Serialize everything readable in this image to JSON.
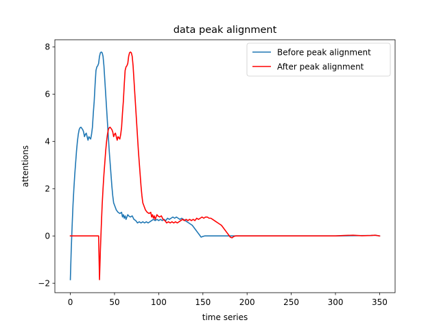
{
  "chart_data": {
    "type": "line",
    "title": "data peak alignment",
    "xlabel": "time series",
    "ylabel": "attentions",
    "xlim": [
      -17.5,
      367.5
    ],
    "ylim": [
      -2.4,
      8.3
    ],
    "xticks": [
      0,
      50,
      100,
      150,
      200,
      250,
      300,
      350
    ],
    "yticks": [
      -2,
      0,
      2,
      4,
      6,
      8
    ],
    "grid": false,
    "legend_position": "upper-right",
    "series": [
      {
        "name": "Before peak alignment",
        "color": "#1f77b4",
        "points": [
          [
            0,
            -1.85
          ],
          [
            1,
            -0.6
          ],
          [
            2,
            0.4
          ],
          [
            3,
            1.3
          ],
          [
            4,
            2.0
          ],
          [
            5,
            2.6
          ],
          [
            6,
            3.1
          ],
          [
            7,
            3.6
          ],
          [
            8,
            4.0
          ],
          [
            9,
            4.3
          ],
          [
            10,
            4.5
          ],
          [
            11,
            4.58
          ],
          [
            12,
            4.6
          ],
          [
            13,
            4.55
          ],
          [
            14,
            4.5
          ],
          [
            15,
            4.4
          ],
          [
            16,
            4.2
          ],
          [
            17,
            4.3
          ],
          [
            18,
            4.35
          ],
          [
            19,
            4.2
          ],
          [
            20,
            4.05
          ],
          [
            21,
            4.2
          ],
          [
            22,
            4.15
          ],
          [
            23,
            4.1
          ],
          [
            24,
            4.3
          ],
          [
            25,
            4.6
          ],
          [
            26,
            5.2
          ],
          [
            27,
            5.7
          ],
          [
            28,
            6.4
          ],
          [
            29,
            7.0
          ],
          [
            30,
            7.15
          ],
          [
            31,
            7.2
          ],
          [
            32,
            7.3
          ],
          [
            33,
            7.6
          ],
          [
            34,
            7.75
          ],
          [
            35,
            7.78
          ],
          [
            36,
            7.75
          ],
          [
            37,
            7.6
          ],
          [
            38,
            7.2
          ],
          [
            39,
            6.6
          ],
          [
            40,
            6.0
          ],
          [
            41,
            5.4
          ],
          [
            42,
            4.8
          ],
          [
            43,
            4.2
          ],
          [
            44,
            3.6
          ],
          [
            45,
            3.1
          ],
          [
            46,
            2.6
          ],
          [
            47,
            2.1
          ],
          [
            48,
            1.7
          ],
          [
            49,
            1.4
          ],
          [
            50,
            1.3
          ],
          [
            52,
            1.1
          ],
          [
            54,
            1.0
          ],
          [
            56,
            0.95
          ],
          [
            58,
            1.0
          ],
          [
            59,
            0.8
          ],
          [
            60,
            0.9
          ],
          [
            61,
            0.75
          ],
          [
            62,
            0.85
          ],
          [
            63,
            0.7
          ],
          [
            64,
            0.8
          ],
          [
            65,
            0.9
          ],
          [
            66,
            0.85
          ],
          [
            68,
            0.8
          ],
          [
            70,
            0.85
          ],
          [
            72,
            0.7
          ],
          [
            74,
            0.65
          ],
          [
            76,
            0.55
          ],
          [
            78,
            0.6
          ],
          [
            80,
            0.55
          ],
          [
            82,
            0.6
          ],
          [
            84,
            0.55
          ],
          [
            86,
            0.6
          ],
          [
            88,
            0.55
          ],
          [
            90,
            0.6
          ],
          [
            92,
            0.65
          ],
          [
            94,
            0.7
          ],
          [
            96,
            0.65
          ],
          [
            98,
            0.7
          ],
          [
            100,
            0.65
          ],
          [
            102,
            0.7
          ],
          [
            104,
            0.65
          ],
          [
            106,
            0.7
          ],
          [
            108,
            0.65
          ],
          [
            110,
            0.75
          ],
          [
            112,
            0.7
          ],
          [
            114,
            0.75
          ],
          [
            116,
            0.8
          ],
          [
            118,
            0.75
          ],
          [
            120,
            0.8
          ],
          [
            122,
            0.75
          ],
          [
            124,
            0.7
          ],
          [
            126,
            0.75
          ],
          [
            128,
            0.7
          ],
          [
            130,
            0.65
          ],
          [
            132,
            0.6
          ],
          [
            134,
            0.55
          ],
          [
            136,
            0.5
          ],
          [
            138,
            0.45
          ],
          [
            140,
            0.35
          ],
          [
            142,
            0.25
          ],
          [
            144,
            0.15
          ],
          [
            146,
            0.05
          ],
          [
            148,
            -0.05
          ],
          [
            150,
            -0.02
          ],
          [
            152,
            0.0
          ],
          [
            155,
            0.0
          ],
          [
            170,
            0.0
          ],
          [
            185,
            0.0
          ],
          [
            200,
            0.0
          ],
          [
            250,
            0.0
          ],
          [
            300,
            0.0
          ],
          [
            340,
            0.02
          ],
          [
            345,
            0.03
          ],
          [
            350,
            0.0
          ]
        ]
      },
      {
        "name": "After peak alignment",
        "color": "#ff0000",
        "points": [
          [
            0,
            0.0
          ],
          [
            10,
            0.0
          ],
          [
            20,
            0.0
          ],
          [
            31,
            0.0
          ],
          [
            32,
            0.0
          ],
          [
            33,
            -1.85
          ],
          [
            34,
            -0.6
          ],
          [
            35,
            0.4
          ],
          [
            36,
            1.3
          ],
          [
            37,
            2.0
          ],
          [
            38,
            2.6
          ],
          [
            39,
            3.1
          ],
          [
            40,
            3.6
          ],
          [
            41,
            4.0
          ],
          [
            42,
            4.3
          ],
          [
            43,
            4.5
          ],
          [
            44,
            4.58
          ],
          [
            45,
            4.6
          ],
          [
            46,
            4.55
          ],
          [
            47,
            4.5
          ],
          [
            48,
            4.4
          ],
          [
            49,
            4.2
          ],
          [
            50,
            4.3
          ],
          [
            51,
            4.35
          ],
          [
            52,
            4.2
          ],
          [
            53,
            4.05
          ],
          [
            54,
            4.2
          ],
          [
            55,
            4.15
          ],
          [
            56,
            4.1
          ],
          [
            57,
            4.3
          ],
          [
            58,
            4.6
          ],
          [
            59,
            5.2
          ],
          [
            60,
            5.7
          ],
          [
            61,
            6.4
          ],
          [
            62,
            7.0
          ],
          [
            63,
            7.15
          ],
          [
            64,
            7.2
          ],
          [
            65,
            7.3
          ],
          [
            66,
            7.6
          ],
          [
            67,
            7.75
          ],
          [
            68,
            7.78
          ],
          [
            69,
            7.75
          ],
          [
            70,
            7.6
          ],
          [
            71,
            7.2
          ],
          [
            72,
            6.6
          ],
          [
            73,
            6.0
          ],
          [
            74,
            5.4
          ],
          [
            75,
            4.8
          ],
          [
            76,
            4.2
          ],
          [
            77,
            3.6
          ],
          [
            78,
            3.1
          ],
          [
            79,
            2.6
          ],
          [
            80,
            2.1
          ],
          [
            81,
            1.7
          ],
          [
            82,
            1.4
          ],
          [
            83,
            1.3
          ],
          [
            85,
            1.1
          ],
          [
            87,
            1.0
          ],
          [
            89,
            0.95
          ],
          [
            91,
            1.0
          ],
          [
            92,
            0.8
          ],
          [
            93,
            0.9
          ],
          [
            94,
            0.75
          ],
          [
            95,
            0.85
          ],
          [
            96,
            0.7
          ],
          [
            97,
            0.8
          ],
          [
            98,
            0.9
          ],
          [
            99,
            0.85
          ],
          [
            101,
            0.8
          ],
          [
            103,
            0.85
          ],
          [
            105,
            0.7
          ],
          [
            107,
            0.65
          ],
          [
            109,
            0.55
          ],
          [
            111,
            0.6
          ],
          [
            113,
            0.55
          ],
          [
            115,
            0.6
          ],
          [
            117,
            0.55
          ],
          [
            119,
            0.6
          ],
          [
            121,
            0.55
          ],
          [
            123,
            0.6
          ],
          [
            125,
            0.65
          ],
          [
            127,
            0.7
          ],
          [
            129,
            0.65
          ],
          [
            131,
            0.7
          ],
          [
            133,
            0.65
          ],
          [
            135,
            0.7
          ],
          [
            137,
            0.65
          ],
          [
            139,
            0.7
          ],
          [
            141,
            0.65
          ],
          [
            143,
            0.75
          ],
          [
            145,
            0.7
          ],
          [
            147,
            0.75
          ],
          [
            149,
            0.8
          ],
          [
            151,
            0.75
          ],
          [
            153,
            0.8
          ],
          [
            155,
            0.8
          ],
          [
            157,
            0.75
          ],
          [
            159,
            0.75
          ],
          [
            161,
            0.7
          ],
          [
            163,
            0.65
          ],
          [
            165,
            0.6
          ],
          [
            167,
            0.55
          ],
          [
            169,
            0.5
          ],
          [
            171,
            0.45
          ],
          [
            173,
            0.35
          ],
          [
            175,
            0.25
          ],
          [
            177,
            0.15
          ],
          [
            179,
            0.05
          ],
          [
            181,
            -0.05
          ],
          [
            183,
            -0.08
          ],
          [
            185,
            -0.02
          ],
          [
            187,
            0.0
          ],
          [
            200,
            0.0
          ],
          [
            250,
            0.0
          ],
          [
            300,
            0.0
          ],
          [
            310,
            0.02
          ],
          [
            320,
            0.03
          ],
          [
            330,
            0.01
          ],
          [
            340,
            0.02
          ],
          [
            345,
            0.03
          ],
          [
            350,
            0.0
          ]
        ]
      }
    ]
  }
}
